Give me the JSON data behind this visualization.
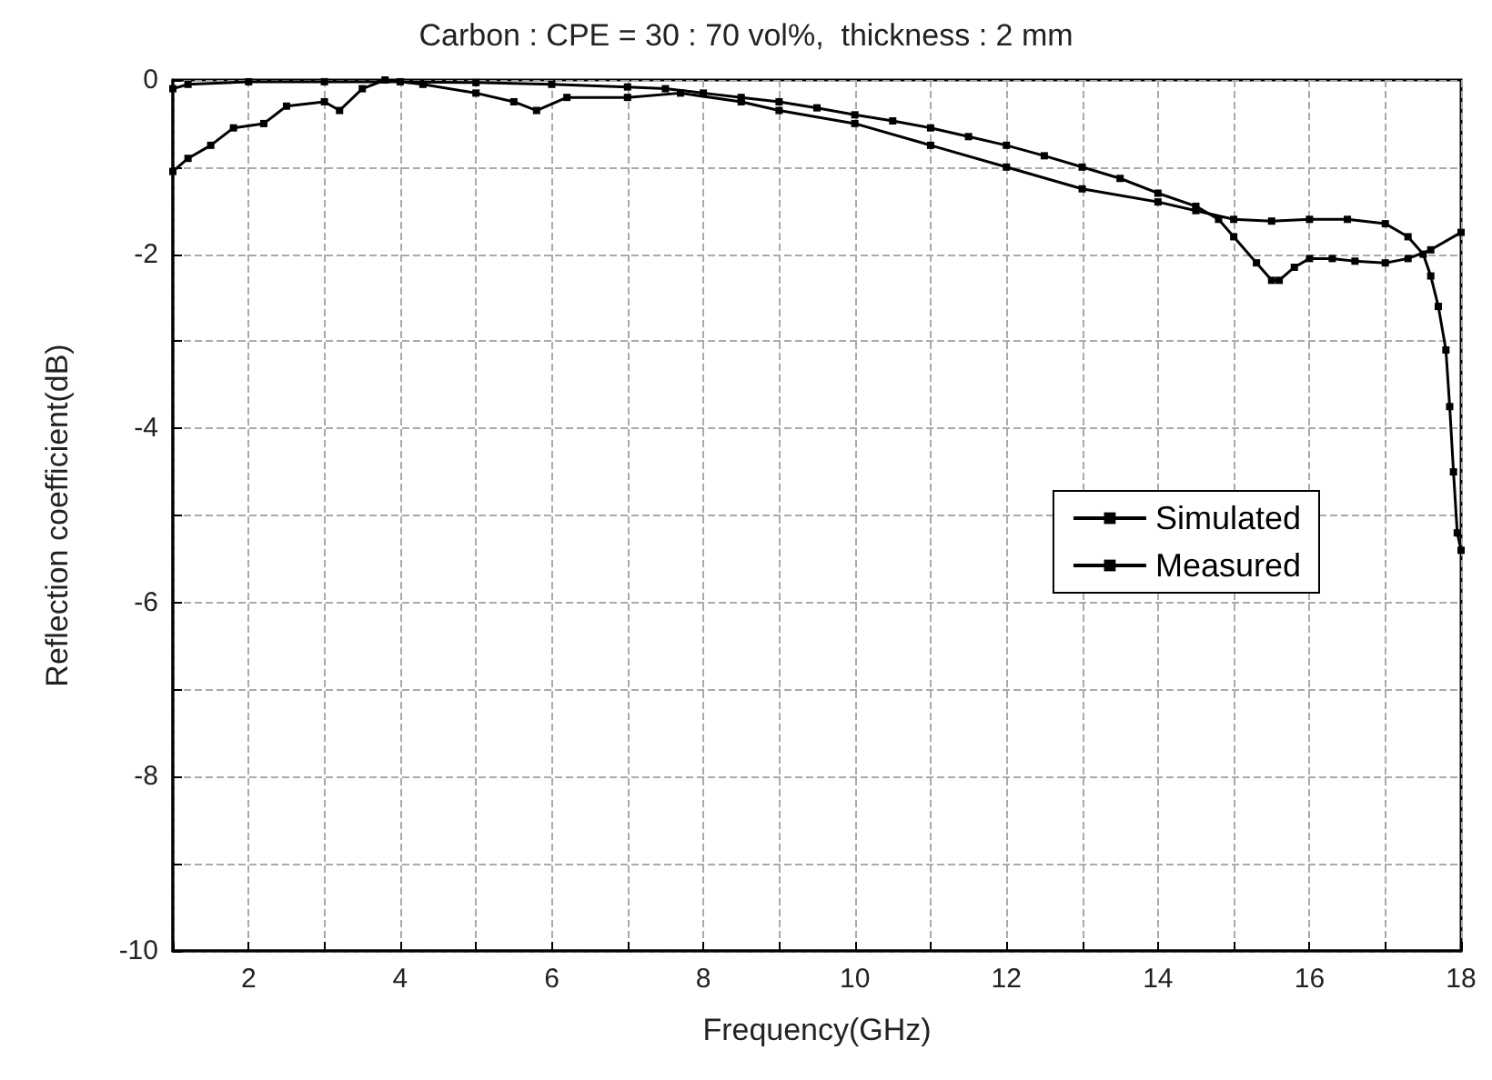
{
  "chart_data": {
    "type": "line",
    "title": "Carbon : CPE = 30 : 70 vol%,  thickness : 2 mm",
    "xlabel": "Frequency(GHz)",
    "ylabel": "Reflection coefficient(dB)",
    "xlim": [
      1,
      18
    ],
    "xticks": [
      {
        "value": 1,
        "label": null
      },
      2,
      {
        "value": 3,
        "label": null
      },
      4,
      {
        "value": 5,
        "label": null
      },
      6,
      {
        "value": 7,
        "label": null
      },
      8,
      {
        "value": 9,
        "label": null
      },
      10,
      {
        "value": 11,
        "label": null
      },
      12,
      {
        "value": 13,
        "label": null
      },
      14,
      {
        "value": 15,
        "label": null
      },
      16,
      {
        "value": 17,
        "label": null
      },
      18
    ],
    "ylim": [
      -10,
      0
    ],
    "yticks": [
      -10,
      {
        "value": -9,
        "label": null
      },
      -8,
      {
        "value": -7,
        "label": null
      },
      -6,
      {
        "value": -5,
        "label": null
      },
      -4,
      {
        "value": -3,
        "label": null
      },
      -2,
      {
        "value": -1,
        "label": null
      },
      0
    ],
    "grid": true,
    "legend": "right",
    "marker": "square",
    "series": [
      {
        "name": "Simulated",
        "color": "#000000",
        "x": [
          1,
          1.2,
          2,
          3,
          4,
          5,
          6,
          7,
          7.5,
          8,
          8.5,
          9,
          9.5,
          10,
          10.5,
          11,
          11.5,
          12,
          12.5,
          13,
          13.5,
          14,
          14.5,
          14.8,
          15,
          15.3,
          15.5,
          15.6,
          15.8,
          16,
          16.3,
          16.6,
          17,
          17.3,
          17.6,
          18
        ],
        "values": [
          -0.1,
          -0.05,
          -0.02,
          -0.02,
          -0.02,
          -0.03,
          -0.05,
          -0.08,
          -0.1,
          -0.15,
          -0.2,
          -0.25,
          -0.32,
          -0.4,
          -0.47,
          -0.55,
          -0.65,
          -0.75,
          -0.87,
          -1.0,
          -1.13,
          -1.3,
          -1.45,
          -1.6,
          -1.8,
          -2.1,
          -2.3,
          -2.3,
          -2.15,
          -2.05,
          -2.05,
          -2.08,
          -2.1,
          -2.05,
          -1.95,
          -1.75
        ]
      },
      {
        "name": "Measured",
        "color": "#000000",
        "x": [
          1,
          1.2,
          1.5,
          1.8,
          2.2,
          2.5,
          3,
          3.2,
          3.5,
          3.8,
          4.3,
          5,
          5.5,
          5.8,
          6.2,
          7,
          7.7,
          8.5,
          9,
          10,
          11,
          12,
          13,
          14,
          14.5,
          15,
          15.5,
          16,
          16.5,
          17,
          17.3,
          17.5,
          17.6,
          17.7,
          17.8,
          17.85,
          17.9,
          17.95,
          18
        ],
        "values": [
          -1.05,
          -0.9,
          -0.75,
          -0.55,
          -0.5,
          -0.3,
          -0.25,
          -0.35,
          -0.1,
          0,
          -0.05,
          -0.15,
          -0.25,
          -0.35,
          -0.2,
          -0.2,
          -0.15,
          -0.25,
          -0.35,
          -0.5,
          -0.75,
          -1.0,
          -1.25,
          -1.4,
          -1.5,
          -1.6,
          -1.62,
          -1.6,
          -1.6,
          -1.65,
          -1.8,
          -2.0,
          -2.25,
          -2.6,
          -3.1,
          -3.75,
          -4.5,
          -5.2,
          -5.4
        ]
      }
    ]
  }
}
